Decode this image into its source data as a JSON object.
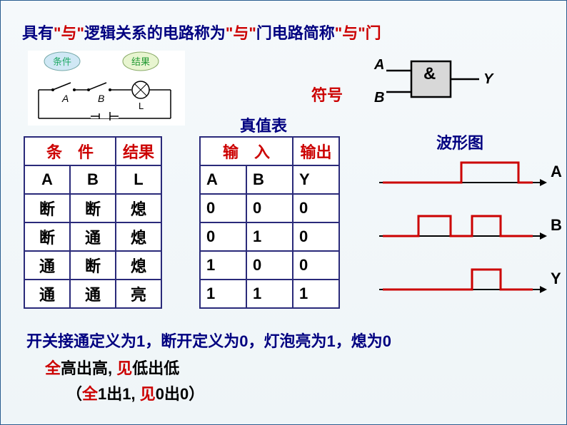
{
  "title": {
    "pre": "具有",
    "q1": "\"与\"",
    "mid1": "逻辑关系的电路称为",
    "q2": "\"与\"",
    "mid2": "门电路简称",
    "q3": "\"与\"",
    "end": "门"
  },
  "circuit": {
    "bubble1": "条件",
    "bubble2": "结果",
    "labelA": "A",
    "labelB": "B",
    "labelL": "L"
  },
  "symbol_label": "符号",
  "gate": {
    "A": "A",
    "B": "B",
    "Y": "Y",
    "amp": "&"
  },
  "truth_label": "真值表",
  "wave_label": "波形图",
  "cond_table": {
    "h1": "条　件",
    "h2": "结果",
    "cols": [
      "A",
      "B",
      "L"
    ],
    "rows": [
      [
        "断",
        "断",
        "熄"
      ],
      [
        "断",
        "通",
        "熄"
      ],
      [
        "通",
        "断",
        "熄"
      ],
      [
        "通",
        "通",
        "亮"
      ]
    ]
  },
  "truth_table": {
    "h1": "输　入",
    "h2": "输出",
    "cols": [
      "A",
      "B",
      "Y"
    ],
    "rows": [
      [
        "0",
        "0",
        "0"
      ],
      [
        "0",
        "1",
        "0"
      ],
      [
        "1",
        "0",
        "0"
      ],
      [
        "1",
        "1",
        "1"
      ]
    ]
  },
  "waves": {
    "labels": [
      "A",
      "B",
      "Y"
    ],
    "color": "#cc0000",
    "axis_color": "#000000",
    "A": [
      [
        0,
        0
      ],
      [
        110,
        0
      ],
      [
        110,
        1
      ],
      [
        190,
        1
      ],
      [
        190,
        0
      ],
      [
        210,
        0
      ]
    ],
    "B": [
      [
        0,
        0
      ],
      [
        50,
        0
      ],
      [
        50,
        1
      ],
      [
        95,
        1
      ],
      [
        95,
        0
      ],
      [
        125,
        0
      ],
      [
        125,
        1
      ],
      [
        165,
        1
      ],
      [
        165,
        0
      ],
      [
        210,
        0
      ]
    ],
    "Y": [
      [
        0,
        0
      ],
      [
        125,
        0
      ],
      [
        125,
        1
      ],
      [
        165,
        1
      ],
      [
        165,
        0
      ],
      [
        210,
        0
      ]
    ]
  },
  "bottom": {
    "line1": "开关接通定义为1，断开定义为0，灯泡亮为1，熄为0",
    "line2": {
      "a": "全",
      "b": "高出高,",
      "c": "见",
      "d": "低出低"
    },
    "line3": {
      "a": "（",
      "b": "全",
      "c": "1出1,",
      "d": "见",
      "e": "0出0）"
    }
  },
  "colors": {
    "red": "#cc0000",
    "navy": "#000080",
    "border": "#2a2a7a"
  }
}
